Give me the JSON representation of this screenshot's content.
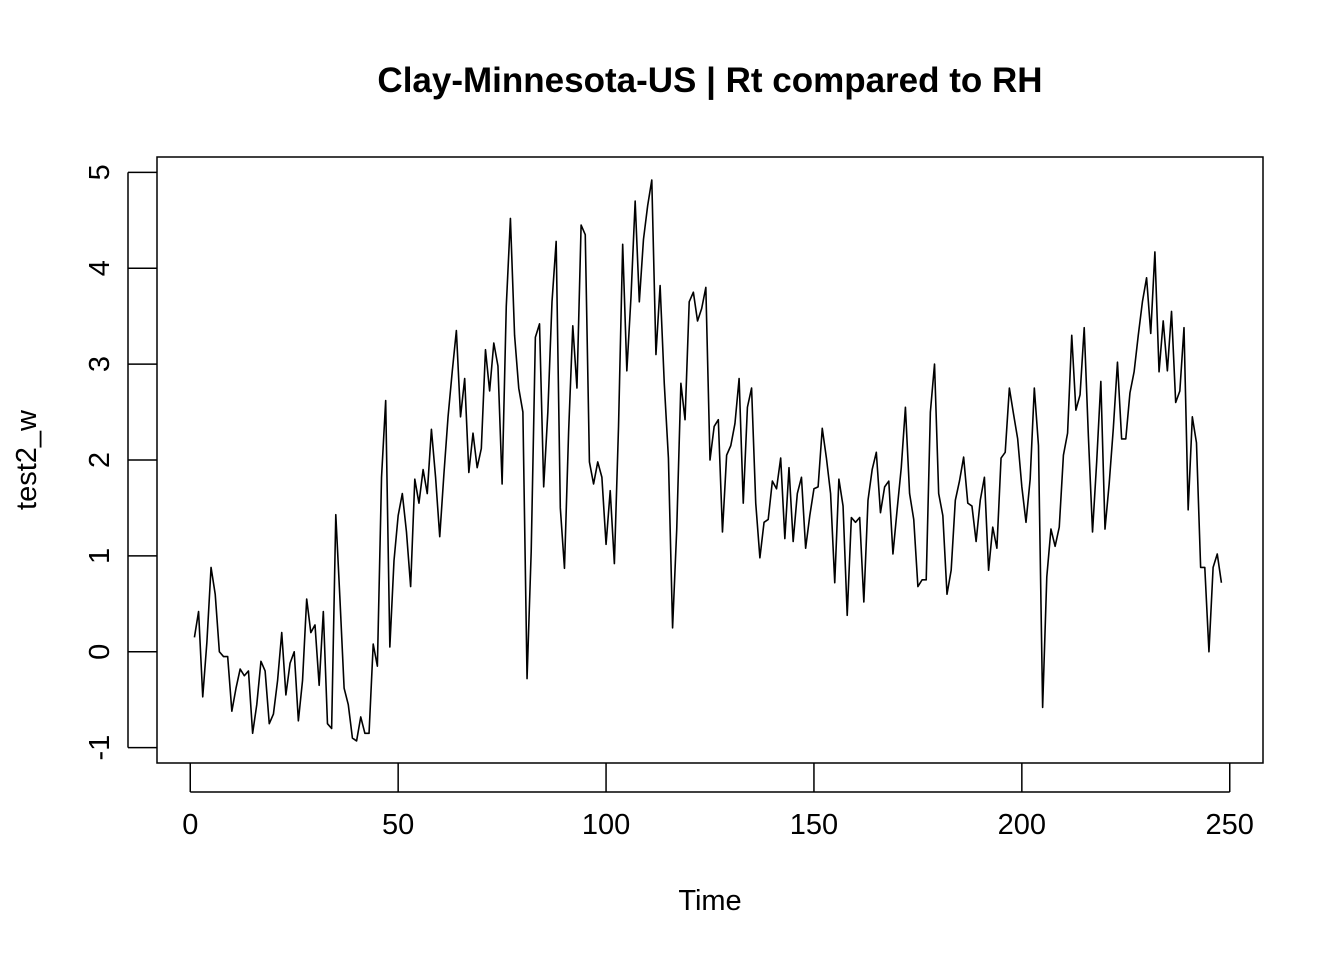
{
  "chart_data": {
    "type": "line",
    "title": "Clay-Minnesota-US | Rt compared to RH",
    "xlabel": "Time",
    "ylabel": "test2_w",
    "xlim": [
      -8,
      258
    ],
    "ylim": [
      -1.16,
      5.16
    ],
    "x_ticks": [
      0,
      50,
      100,
      150,
      200,
      250
    ],
    "x_tick_labels": [
      "0",
      "50",
      "100",
      "150",
      "200",
      "250"
    ],
    "y_ticks": [
      -1,
      0,
      1,
      2,
      3,
      4,
      5
    ],
    "y_tick_labels": [
      "-1",
      "0",
      "1",
      "2",
      "3",
      "4",
      "5"
    ],
    "grid": false,
    "legend": "none",
    "x_start": 1,
    "series": [
      {
        "color": "#000000",
        "values": [
          0.15,
          0.42,
          -0.47,
          0.1,
          0.88,
          0.6,
          0.0,
          -0.05,
          -0.05,
          -0.62,
          -0.38,
          -0.18,
          -0.25,
          -0.2,
          -0.85,
          -0.55,
          -0.1,
          -0.2,
          -0.75,
          -0.65,
          -0.3,
          0.2,
          -0.45,
          -0.12,
          0.0,
          -0.72,
          -0.3,
          0.55,
          0.2,
          0.28,
          -0.35,
          0.42,
          -0.75,
          -0.8,
          1.43,
          0.55,
          -0.38,
          -0.55,
          -0.9,
          -0.93,
          -0.68,
          -0.85,
          -0.85,
          0.08,
          -0.15,
          1.82,
          2.62,
          0.05,
          0.95,
          1.42,
          1.65,
          1.25,
          0.68,
          1.8,
          1.55,
          1.9,
          1.65,
          2.32,
          1.82,
          1.2,
          1.85,
          2.45,
          2.92,
          3.35,
          2.45,
          2.85,
          1.87,
          2.28,
          1.92,
          2.12,
          3.15,
          2.72,
          3.22,
          2.98,
          1.75,
          3.6,
          4.52,
          3.3,
          2.75,
          2.5,
          -0.28,
          1.05,
          3.28,
          3.42,
          1.72,
          2.5,
          3.65,
          4.28,
          1.5,
          0.87,
          2.3,
          3.4,
          2.75,
          4.45,
          4.35,
          1.98,
          1.75,
          1.98,
          1.82,
          1.12,
          1.68,
          0.92,
          2.35,
          4.25,
          2.93,
          3.7,
          4.7,
          3.65,
          4.3,
          4.65,
          4.92,
          3.1,
          3.82,
          2.8,
          2.02,
          0.25,
          1.28,
          2.8,
          2.42,
          3.65,
          3.75,
          3.45,
          3.58,
          3.8,
          2.0,
          2.35,
          2.42,
          1.25,
          2.05,
          2.15,
          2.38,
          2.85,
          1.55,
          2.55,
          2.75,
          1.55,
          0.98,
          1.35,
          1.38,
          1.78,
          1.7,
          2.02,
          1.18,
          1.92,
          1.15,
          1.65,
          1.82,
          1.08,
          1.42,
          1.7,
          1.72,
          2.33,
          2.02,
          1.65,
          0.72,
          1.8,
          1.52,
          0.38,
          1.4,
          1.35,
          1.4,
          0.52,
          1.58,
          1.9,
          2.08,
          1.45,
          1.72,
          1.78,
          1.02,
          1.48,
          1.92,
          2.55,
          1.65,
          1.38,
          0.68,
          0.75,
          0.75,
          2.5,
          3.0,
          1.65,
          1.42,
          0.6,
          0.85,
          1.58,
          1.78,
          2.03,
          1.55,
          1.52,
          1.15,
          1.58,
          1.82,
          0.85,
          1.3,
          1.08,
          2.02,
          2.08,
          2.75,
          2.48,
          2.22,
          1.72,
          1.35,
          1.8,
          2.75,
          2.15,
          -0.58,
          0.78,
          1.28,
          1.1,
          1.3,
          2.05,
          2.28,
          3.3,
          2.52,
          2.68,
          3.38,
          2.25,
          1.25,
          1.98,
          2.82,
          1.28,
          1.75,
          2.33,
          3.02,
          2.22,
          2.22,
          2.7,
          2.92,
          3.3,
          3.65,
          3.9,
          3.32,
          4.17,
          2.92,
          3.45,
          2.93,
          3.55,
          2.6,
          2.72,
          3.38,
          1.48,
          2.45,
          2.18,
          0.88,
          0.88,
          0.0,
          0.88,
          1.02,
          0.72
        ]
      }
    ]
  }
}
